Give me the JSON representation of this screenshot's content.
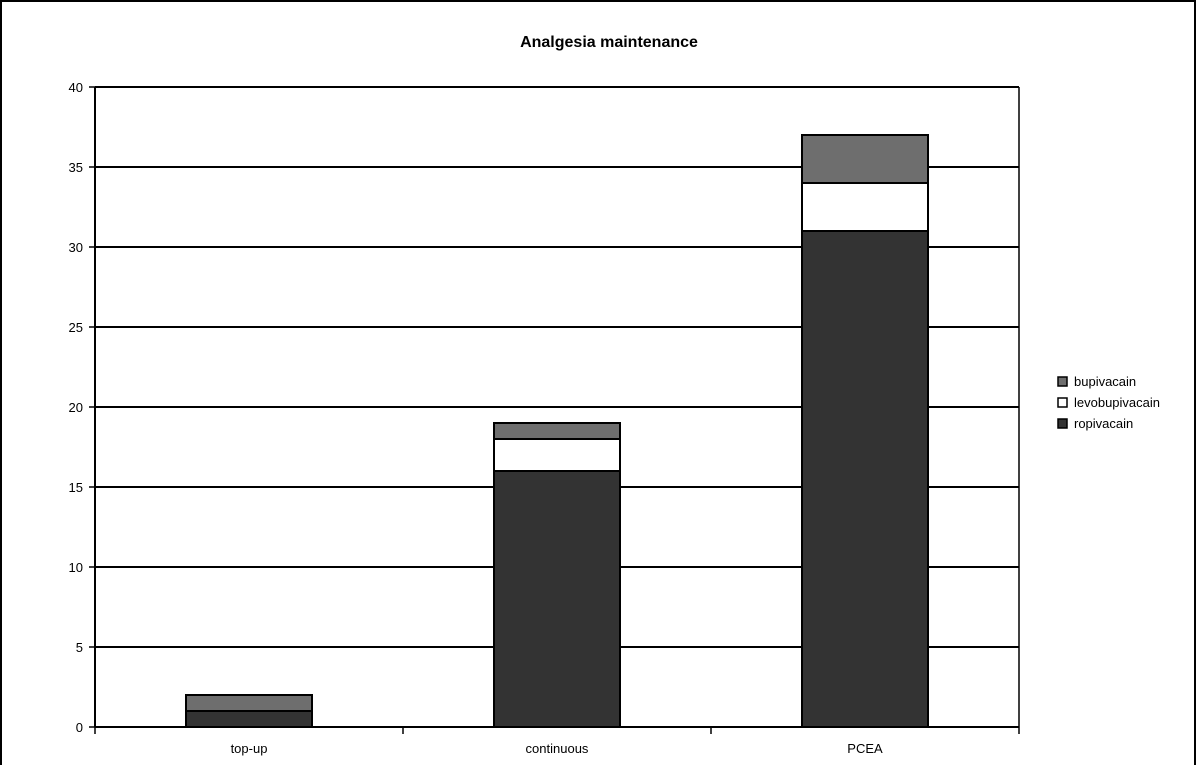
{
  "chart_data": {
    "type": "bar",
    "stacked": true,
    "title": "Analgesia maintenance",
    "xlabel": "",
    "ylabel": "",
    "categories": [
      "top-up",
      "continuous",
      "PCEA"
    ],
    "ylim": [
      0,
      40
    ],
    "yticks": [
      0,
      5,
      10,
      15,
      20,
      25,
      30,
      35,
      40
    ],
    "grid": true,
    "legend_position": "right",
    "series": [
      {
        "name": "ropivacain",
        "values": [
          1,
          16,
          31
        ],
        "color": "#333333"
      },
      {
        "name": "levobupivacain",
        "values": [
          0,
          2,
          3
        ],
        "color": "#ffffff"
      },
      {
        "name": "bupivacain",
        "values": [
          1,
          1,
          3
        ],
        "color": "#6e6e6e"
      }
    ],
    "legend_order": [
      "bupivacain",
      "levobupivacain",
      "ropivacain"
    ]
  }
}
